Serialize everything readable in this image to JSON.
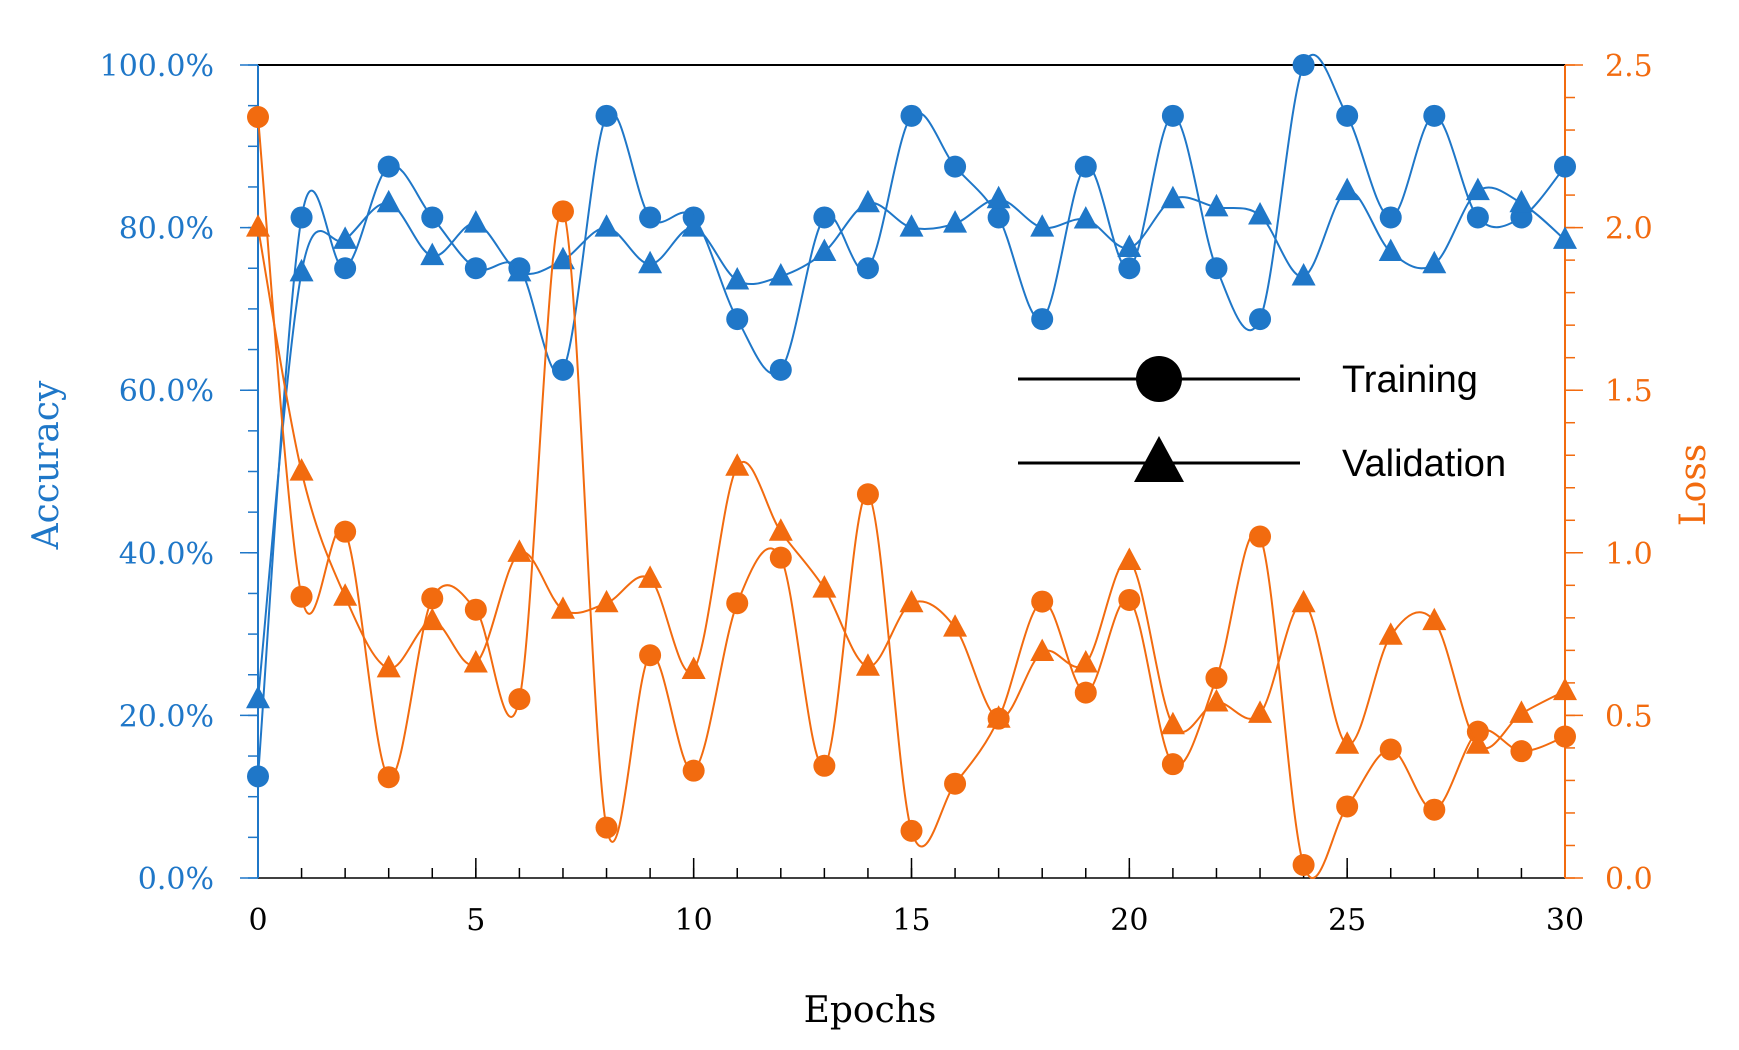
{
  "chart_data": {
    "type": "line",
    "title": "",
    "xlabel": "Epochs",
    "ylabel_left": "Accuracy",
    "ylabel_right": "Loss",
    "xlim": [
      0,
      30
    ],
    "ylim_left": [
      0,
      1
    ],
    "ylim_right": [
      0,
      2.5
    ],
    "x_major_ticks": [
      0,
      5,
      10,
      15,
      20,
      25,
      30
    ],
    "x_tick_labels": [
      "0",
      "5",
      "10",
      "15",
      "20",
      "25",
      "30"
    ],
    "y_left_ticks": [
      0,
      0.2,
      0.4,
      0.6,
      0.8,
      1.0
    ],
    "y_left_tick_labels": [
      "0.0%",
      "20.0%",
      "40.0%",
      "60.0%",
      "80.0%",
      "100.0%"
    ],
    "y_right_ticks": [
      0,
      0.5,
      1.0,
      1.5,
      2.0,
      2.5
    ],
    "y_right_tick_labels": [
      "0.0",
      "0.5",
      "1.0",
      "1.5",
      "2.0",
      "2.5"
    ],
    "legend": {
      "position": "center-right",
      "entries": [
        {
          "label": "Training",
          "marker": "circle"
        },
        {
          "label": "Validation",
          "marker": "triangle"
        }
      ]
    },
    "colors": {
      "accuracy": "#1f77c8",
      "loss": "#f26b0f",
      "legend": "#000000"
    },
    "x": [
      0,
      1,
      2,
      3,
      4,
      5,
      6,
      7,
      8,
      9,
      10,
      11,
      12,
      13,
      14,
      15,
      16,
      17,
      18,
      19,
      20,
      21,
      22,
      23,
      24,
      25,
      26,
      27,
      28,
      29,
      30
    ],
    "series": [
      {
        "name": "Training Accuracy",
        "axis": "left",
        "marker": "circle",
        "color": "#1f77c8",
        "values": [
          0.125,
          0.8125,
          0.75,
          0.875,
          0.8125,
          0.75,
          0.75,
          0.625,
          0.9375,
          0.8125,
          0.8125,
          0.6875,
          0.625,
          0.8125,
          0.75,
          0.9375,
          0.875,
          0.8125,
          0.6875,
          0.875,
          0.75,
          0.9375,
          0.75,
          0.6875,
          1.0,
          0.9375,
          0.8125,
          0.9375,
          0.8125,
          0.8125,
          0.875
        ]
      },
      {
        "name": "Validation Accuracy",
        "axis": "left",
        "marker": "triangle",
        "color": "#1f77c8",
        "values": [
          0.22,
          0.745,
          0.785,
          0.83,
          0.765,
          0.805,
          0.745,
          0.76,
          0.8,
          0.755,
          0.8,
          0.735,
          0.74,
          0.77,
          0.83,
          0.8,
          0.805,
          0.835,
          0.8,
          0.81,
          0.775,
          0.835,
          0.825,
          0.815,
          0.74,
          0.845,
          0.77,
          0.755,
          0.845,
          0.83,
          0.785
        ]
      },
      {
        "name": "Training Loss",
        "axis": "right",
        "marker": "circle",
        "color": "#f26b0f",
        "values": [
          2.34,
          0.865,
          1.065,
          0.31,
          0.86,
          0.825,
          0.55,
          2.05,
          0.155,
          0.685,
          0.33,
          0.845,
          0.985,
          0.345,
          1.18,
          0.145,
          0.29,
          0.49,
          0.85,
          0.57,
          0.855,
          0.35,
          0.615,
          1.05,
          0.04,
          0.22,
          0.395,
          0.21,
          0.45,
          0.39,
          0.435
        ]
      },
      {
        "name": "Validation Loss",
        "axis": "right",
        "marker": "triangle",
        "color": "#f26b0f",
        "values": [
          2.0,
          1.25,
          0.865,
          0.645,
          0.79,
          0.66,
          1.0,
          0.825,
          0.845,
          0.92,
          0.64,
          1.265,
          1.065,
          0.89,
          0.65,
          0.845,
          0.77,
          0.49,
          0.695,
          0.66,
          0.975,
          0.47,
          0.54,
          0.505,
          0.845,
          0.41,
          0.745,
          0.79,
          0.41,
          0.505,
          0.575
        ]
      }
    ]
  }
}
